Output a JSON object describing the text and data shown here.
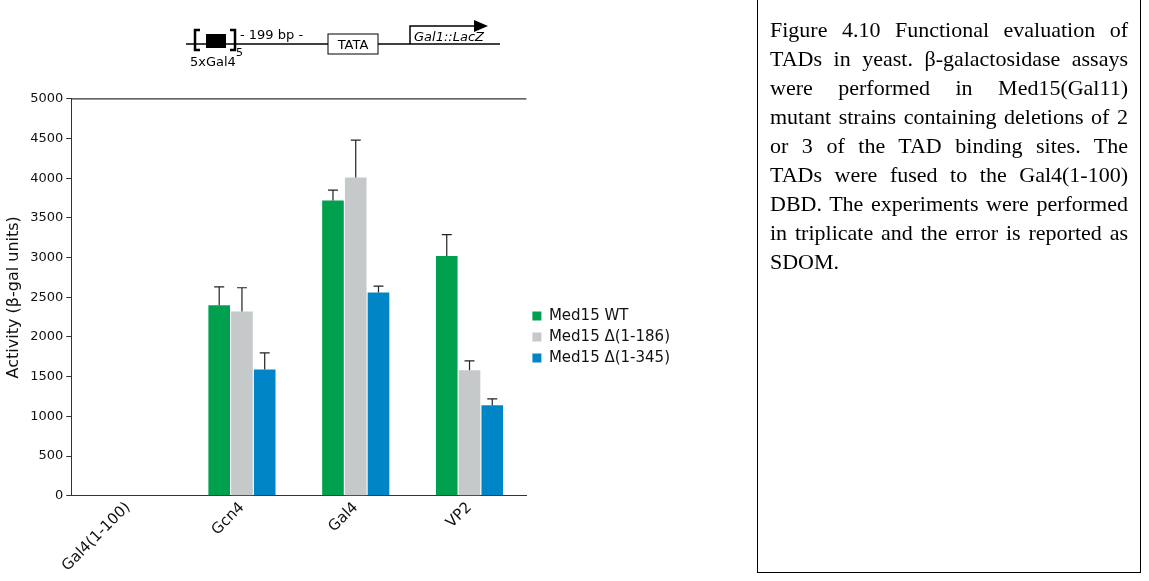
{
  "chart_data": {
    "type": "bar",
    "ylabel": "Activity (β-gal units)",
    "categories": [
      "Gal4(1-100)",
      "Gcn4",
      "Gal4",
      "VP2"
    ],
    "series": [
      {
        "name": "Med15 WT",
        "color": "#00a04f",
        "values": [
          0,
          2400,
          3720,
          3020
        ],
        "errors": [
          null,
          230,
          130,
          270
        ]
      },
      {
        "name": "Med15 Δ(1-186)",
        "color": "#c6c9c9",
        "values": [
          0,
          2320,
          4010,
          1580
        ],
        "errors": [
          null,
          300,
          470,
          120
        ]
      },
      {
        "name": "Med15 Δ(1-345)",
        "color": "#0086c6",
        "values": [
          0,
          1590,
          2560,
          1140
        ],
        "errors": [
          null,
          210,
          80,
          80
        ]
      }
    ],
    "ylim": [
      0,
      5000
    ],
    "yticks": [
      0,
      500,
      1000,
      1500,
      2000,
      2500,
      3000,
      3500,
      4000,
      4500,
      5000
    ],
    "grid": false,
    "legend": "right",
    "annotations": [
      "- 199 bp -",
      "TATA",
      "Gal1::LacZ",
      "5xGal4",
      "5",
      "Figure 4.10 Functional evaluation of TADs in yeast. β-galactosidase assays were performed in Med15(Gal11) mutant strains containing deletions of 2 or 3 of the TAD binding sites. The TADs were fused to the Gal4(1-100) DBD. The experiments were performed in triplicate and the error is reported as SDOM."
    ]
  }
}
